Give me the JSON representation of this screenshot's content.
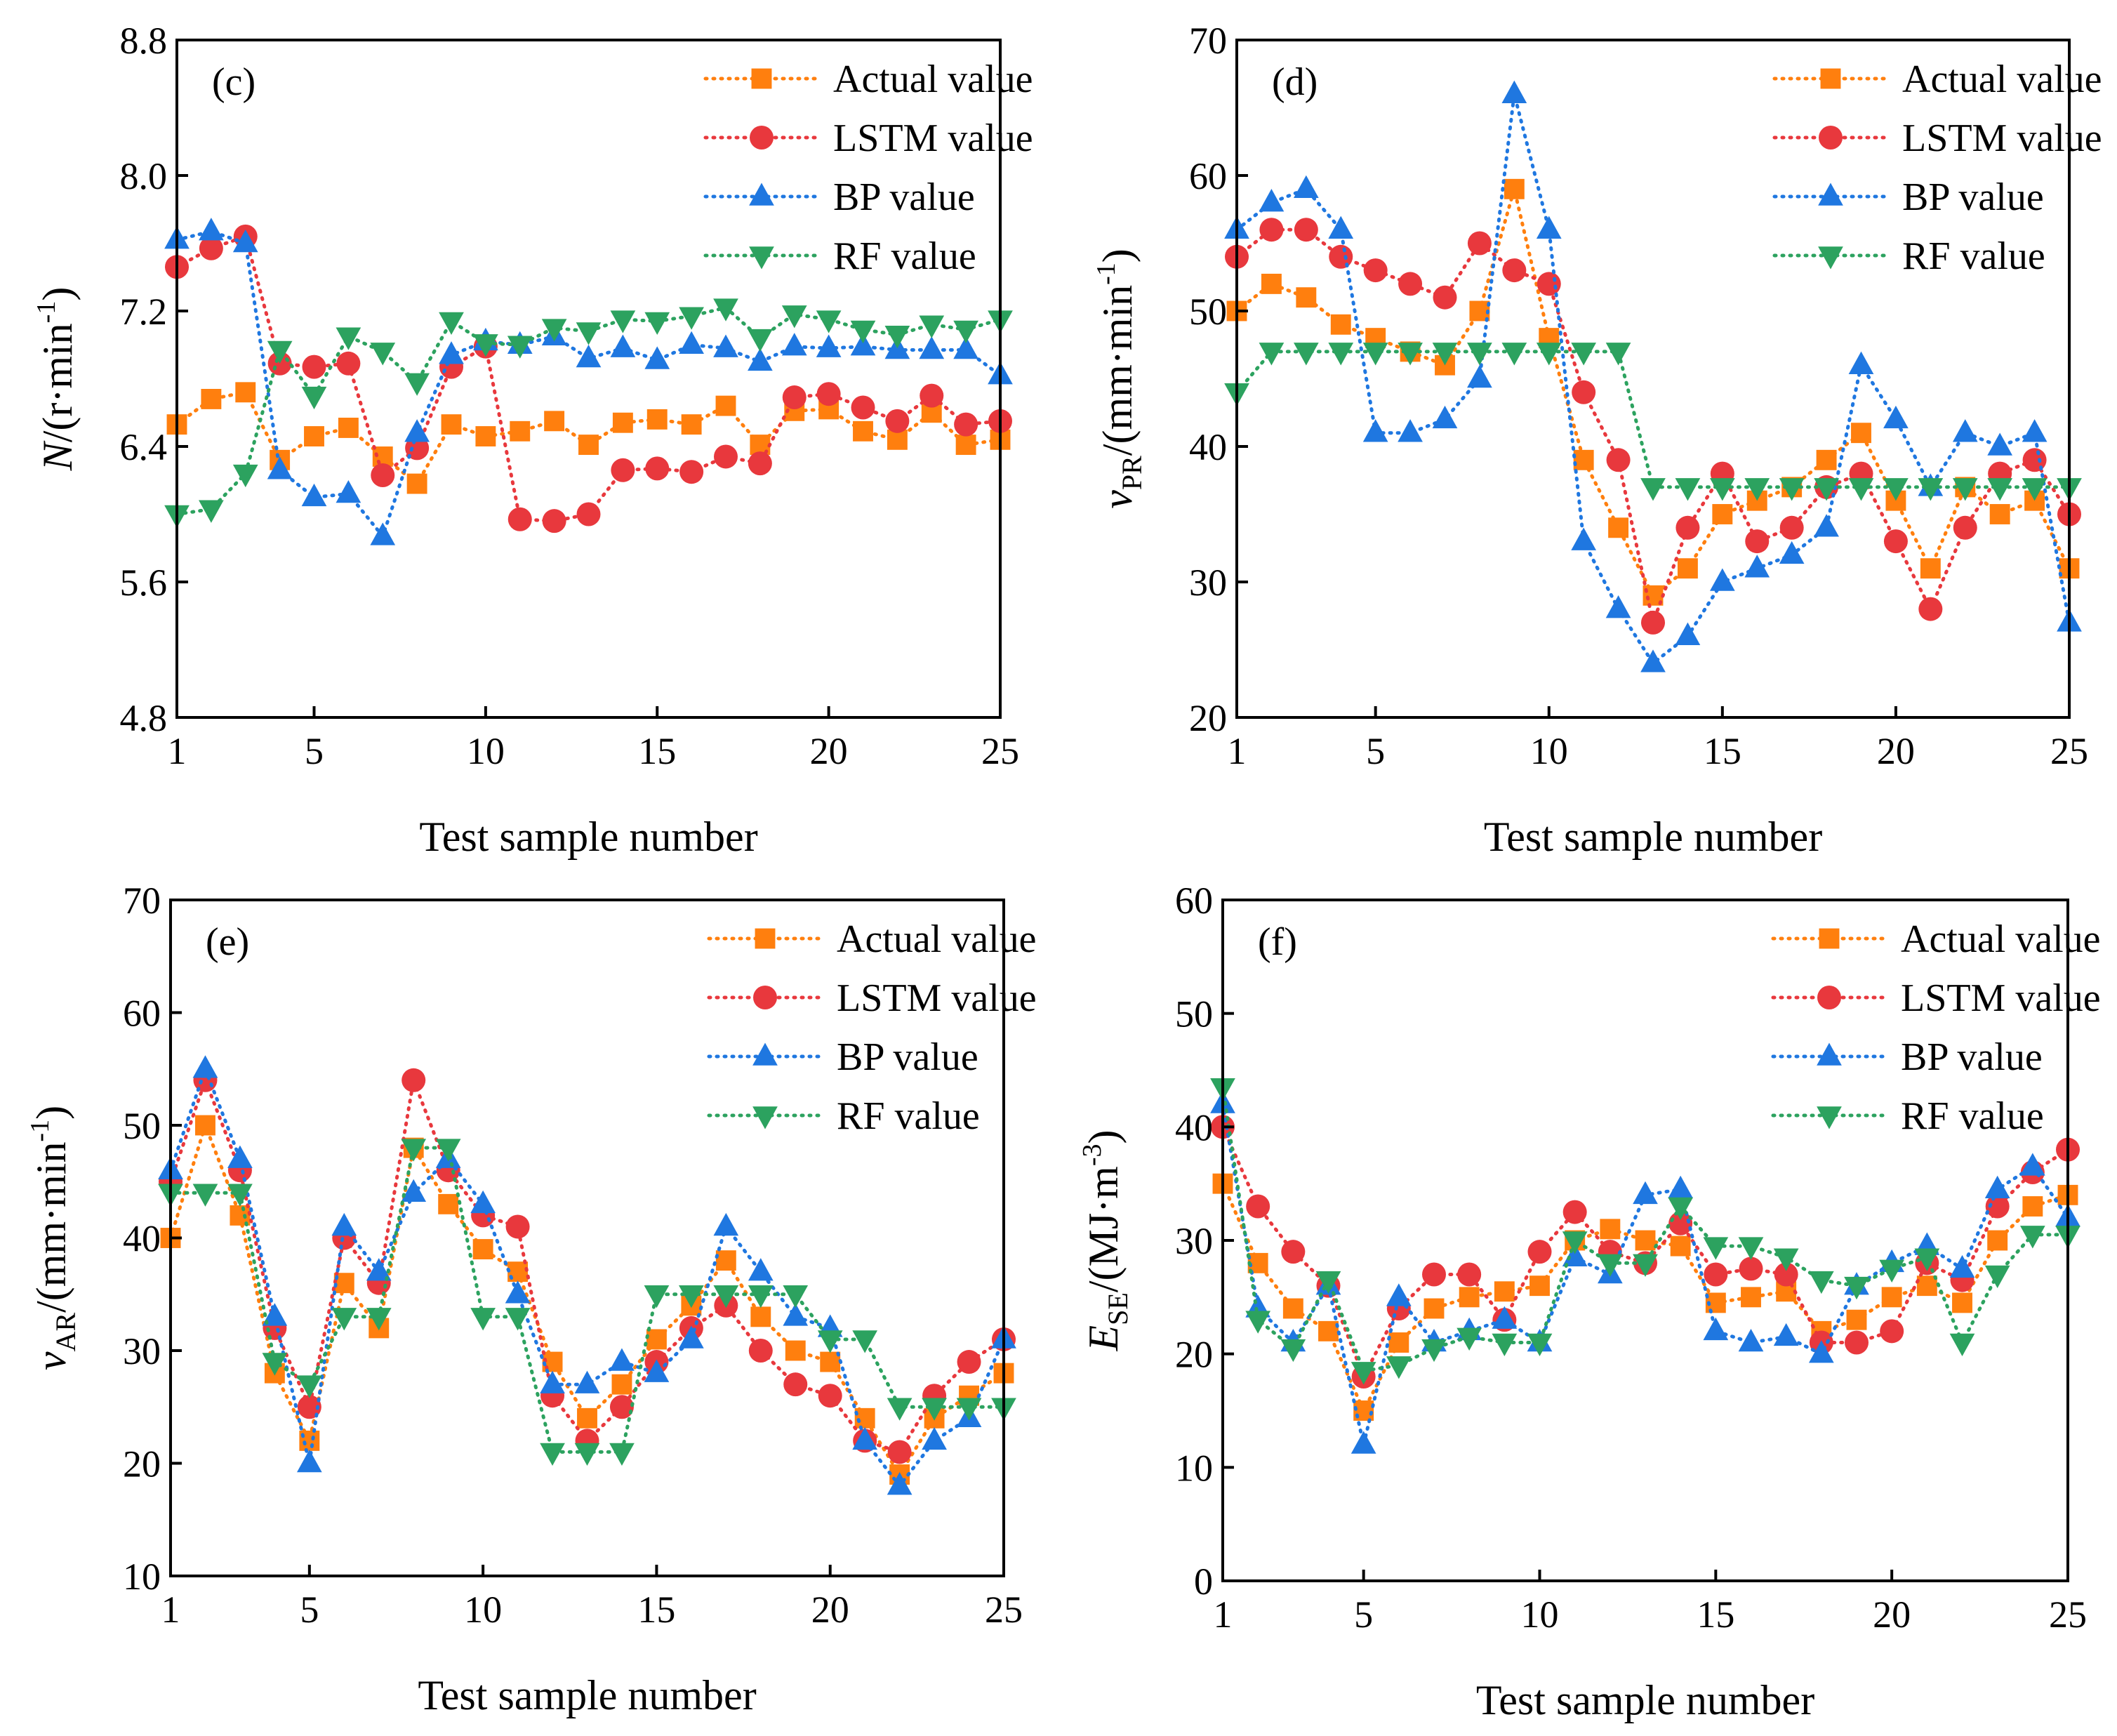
{
  "colors": {
    "actual": "#ff7f0e",
    "lstm": "#e8383d",
    "bp": "#1f77e0",
    "rf": "#2ca25f",
    "axis": "#000000"
  },
  "chart_data": [
    {
      "type": "line",
      "panel_label": "(c)",
      "xlabel": "Test sample number",
      "ylabel": "N/(r·min-1)",
      "ylabel_parts": {
        "main": "N",
        "rest": "/(r·min",
        "sup": "-1",
        "end": ")"
      },
      "xlim": [
        1,
        25
      ],
      "ylim": [
        4.8,
        8.8
      ],
      "xticks": [
        1,
        5,
        10,
        15,
        20,
        25
      ],
      "xtick_labels": [
        "1",
        "5",
        "10",
        "15",
        "20",
        "25"
      ],
      "yticks": [
        4.8,
        5.6,
        6.4,
        7.2,
        8.0,
        8.8
      ],
      "ytick_labels": [
        "4.8",
        "5.6",
        "6.4",
        "7.2",
        "8.0",
        "8.8"
      ],
      "legend_position": "top-right",
      "series": [
        {
          "key": "actual",
          "name": "Actual value",
          "marker": "square",
          "values": [
            6.53,
            6.68,
            6.72,
            6.32,
            6.46,
            6.51,
            6.34,
            6.18,
            6.53,
            6.46,
            6.49,
            6.55,
            6.41,
            6.54,
            6.56,
            6.53,
            6.64,
            6.41,
            6.61,
            6.62,
            6.49,
            6.44,
            6.6,
            6.41,
            6.44
          ]
        },
        {
          "key": "lstm",
          "name": "LSTM value",
          "marker": "circle",
          "values": [
            7.46,
            7.57,
            7.64,
            6.89,
            6.87,
            6.89,
            6.23,
            6.39,
            6.87,
            6.99,
            5.97,
            5.96,
            6.0,
            6.26,
            6.27,
            6.25,
            6.34,
            6.3,
            6.69,
            6.71,
            6.63,
            6.55,
            6.7,
            6.53,
            6.55
          ]
        },
        {
          "key": "bp",
          "name": "BP value",
          "marker": "triangle-up",
          "values": [
            7.62,
            7.67,
            7.6,
            6.26,
            6.1,
            6.12,
            5.87,
            6.48,
            6.94,
            7.02,
            7.0,
            7.05,
            6.92,
            6.98,
            6.91,
            7.0,
            6.98,
            6.9,
            6.99,
            6.98,
            6.99,
            6.97,
            6.97,
            6.97,
            6.82
          ]
        },
        {
          "key": "rf",
          "name": "RF value",
          "marker": "triangle-down",
          "values": [
            6.0,
            6.03,
            6.24,
            6.97,
            6.7,
            7.05,
            6.96,
            6.78,
            7.14,
            7.01,
            7.0,
            7.1,
            7.08,
            7.15,
            7.14,
            7.17,
            7.22,
            7.04,
            7.18,
            7.15,
            7.09,
            7.06,
            7.12,
            7.09,
            7.15
          ]
        }
      ]
    },
    {
      "type": "line",
      "panel_label": "(d)",
      "xlabel": "Test sample number",
      "ylabel": "vPR/(mm·min-1)",
      "ylabel_parts": {
        "main": "v",
        "sub": "PR",
        "rest": "/(mm·min",
        "sup": "-1",
        "end": ")"
      },
      "xlim": [
        1,
        25
      ],
      "ylim": [
        20,
        70
      ],
      "xticks": [
        1,
        5,
        10,
        15,
        20,
        25
      ],
      "xtick_labels": [
        "1",
        "5",
        "10",
        "15",
        "20",
        "25"
      ],
      "yticks": [
        20,
        30,
        40,
        50,
        60,
        70
      ],
      "ytick_labels": [
        "20",
        "30",
        "40",
        "50",
        "60",
        "70"
      ],
      "legend_position": "top-right",
      "series": [
        {
          "key": "actual",
          "name": "Actual value",
          "marker": "square",
          "values": [
            50,
            52,
            51,
            49,
            48,
            47,
            46,
            50,
            59,
            48,
            39,
            34,
            29,
            31,
            35,
            36,
            37,
            39,
            41,
            36,
            31,
            37,
            35,
            36,
            31
          ]
        },
        {
          "key": "lstm",
          "name": "LSTM value",
          "marker": "circle",
          "values": [
            54,
            56,
            56,
            54,
            53,
            52,
            51,
            55,
            53,
            52,
            44,
            39,
            27,
            34,
            38,
            33,
            34,
            37,
            38,
            33,
            28,
            34,
            38,
            39,
            35
          ]
        },
        {
          "key": "bp",
          "name": "BP value",
          "marker": "triangle-up",
          "values": [
            56,
            58,
            59,
            56,
            41,
            41,
            42,
            45,
            66,
            56,
            33,
            28,
            24,
            26,
            30,
            31,
            32,
            34,
            46,
            42,
            37,
            41,
            40,
            41,
            27
          ]
        },
        {
          "key": "rf",
          "name": "RF value",
          "marker": "triangle-down",
          "values": [
            44,
            47,
            47,
            47,
            47,
            47,
            47,
            47,
            47,
            47,
            47,
            47,
            37,
            37,
            37,
            37,
            37,
            37,
            37,
            37,
            37,
            37,
            37,
            37,
            37
          ]
        }
      ]
    },
    {
      "type": "line",
      "panel_label": "(e)",
      "xlabel": "Test sample number",
      "ylabel": "vAR/(mm·min-1)",
      "ylabel_parts": {
        "main": "v",
        "sub": "AR",
        "rest": "/(mm·min",
        "sup": "-1",
        "end": ")"
      },
      "xlim": [
        1,
        25
      ],
      "ylim": [
        10,
        70
      ],
      "xticks": [
        1,
        5,
        10,
        15,
        20,
        25
      ],
      "xtick_labels": [
        "1",
        "5",
        "10",
        "15",
        "20",
        "25"
      ],
      "yticks": [
        10,
        20,
        30,
        40,
        50,
        60,
        70
      ],
      "ytick_labels": [
        "10",
        "20",
        "30",
        "40",
        "50",
        "60",
        "70"
      ],
      "legend_position": "top-right",
      "series": [
        {
          "key": "actual",
          "name": "Actual value",
          "marker": "square",
          "values": [
            40,
            50,
            42,
            28,
            22,
            36,
            32,
            48,
            43,
            39,
            37,
            29,
            24,
            27,
            31,
            34,
            38,
            33,
            30,
            29,
            24,
            19,
            24,
            26,
            28
          ]
        },
        {
          "key": "lstm",
          "name": "LSTM value",
          "marker": "circle",
          "values": [
            45,
            54,
            46,
            32,
            25,
            40,
            36,
            54,
            46,
            42,
            41,
            26,
            22,
            25,
            29,
            32,
            34,
            30,
            27,
            26,
            22,
            21,
            26,
            29,
            31
          ]
        },
        {
          "key": "bp",
          "name": "BP value",
          "marker": "triangle-up",
          "values": [
            46,
            55,
            47,
            33,
            20,
            41,
            37,
            44,
            47,
            43,
            35,
            27,
            27,
            29,
            28,
            31,
            41,
            37,
            33,
            32,
            22,
            18,
            22,
            24,
            31
          ]
        },
        {
          "key": "rf",
          "name": "RF value",
          "marker": "triangle-down",
          "values": [
            44,
            44,
            44,
            29,
            27,
            33,
            33,
            48,
            48,
            33,
            33,
            21,
            21,
            21,
            35,
            35,
            35,
            35,
            35,
            31,
            31,
            25,
            25,
            25,
            25
          ]
        }
      ]
    },
    {
      "type": "line",
      "panel_label": "(f)",
      "xlabel": "Test sample number",
      "ylabel": "ESE/(MJ·m-3)",
      "ylabel_parts": {
        "main": "E",
        "sub": "SE",
        "rest": "/(MJ·m",
        "sup": "-3",
        "end": ")"
      },
      "xlim": [
        1,
        25
      ],
      "ylim": [
        0,
        60
      ],
      "xticks": [
        1,
        5,
        10,
        15,
        20,
        25
      ],
      "xtick_labels": [
        "1",
        "5",
        "10",
        "15",
        "20",
        "25"
      ],
      "yticks": [
        0,
        10,
        20,
        30,
        40,
        50,
        60
      ],
      "ytick_labels": [
        "0",
        "10",
        "20",
        "30",
        "40",
        "50",
        "60"
      ],
      "legend_position": "top-right",
      "series": [
        {
          "key": "actual",
          "name": "Actual value",
          "marker": "square",
          "values": [
            35,
            28,
            24,
            22,
            15,
            21,
            24,
            25,
            25.5,
            26,
            30,
            31,
            30,
            29.5,
            24.5,
            25,
            25.5,
            22,
            23,
            25,
            26,
            24.5,
            30,
            33,
            34
          ]
        },
        {
          "key": "lstm",
          "name": "LSTM value",
          "marker": "circle",
          "values": [
            40,
            33,
            29,
            26,
            18,
            24,
            27,
            27,
            23,
            29,
            32.5,
            29,
            28,
            31.5,
            27,
            27.5,
            27,
            21,
            21,
            22,
            28,
            26.5,
            33,
            36,
            38
          ]
        },
        {
          "key": "bp",
          "name": "BP value",
          "marker": "triangle-up",
          "values": [
            42,
            24,
            21,
            26,
            12,
            25,
            21,
            22,
            23,
            21,
            28.5,
            27,
            34,
            34.5,
            22,
            21,
            21.5,
            20,
            26,
            28,
            29.5,
            27.5,
            34.5,
            36.5,
            32
          ]
        },
        {
          "key": "rf",
          "name": "RF value",
          "marker": "triangle-down",
          "values": [
            43.5,
            23,
            20.5,
            26.5,
            18.5,
            19,
            20.5,
            21.5,
            21,
            21,
            30,
            28,
            28,
            33,
            29.5,
            29.5,
            28.5,
            26.5,
            26,
            27.5,
            28.5,
            21,
            27,
            30.5,
            30.5
          ]
        }
      ]
    }
  ]
}
